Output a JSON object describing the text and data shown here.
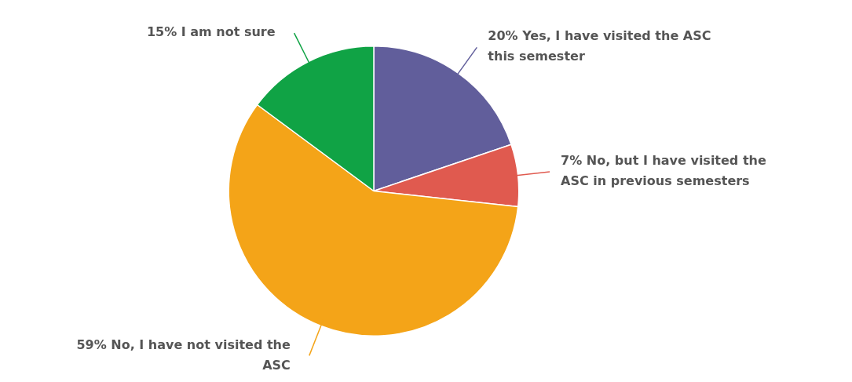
{
  "chart_data": {
    "type": "pie",
    "categories": [
      "Yes, I have visited the ASC this semester",
      "No, but I have visited the ASC in previous semesters",
      "No, I have not visited the ASC",
      "I am not sure"
    ],
    "values": [
      20,
      7,
      59,
      15
    ],
    "colors": [
      "#615e9b",
      "#e05a4f",
      "#f4a418",
      "#10a345"
    ],
    "value_labels": [
      "20%",
      "7%",
      "59%",
      "15%"
    ],
    "legend": false
  }
}
